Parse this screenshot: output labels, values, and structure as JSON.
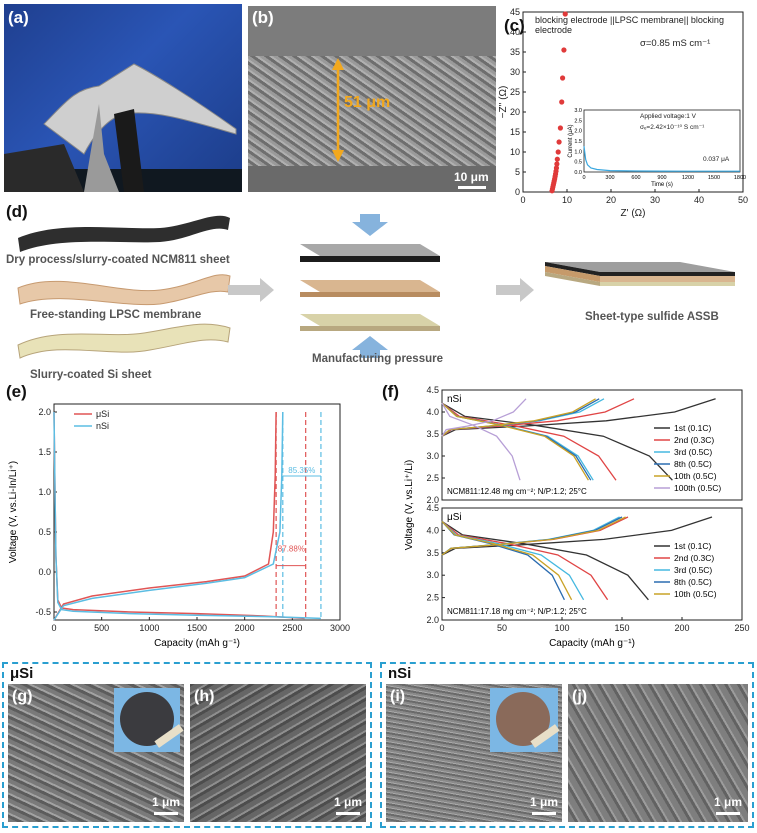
{
  "panels": {
    "a": "(a)",
    "b": "(b)",
    "c": "(c)",
    "d": "(d)",
    "e": "(e)",
    "f": "(f)",
    "g": "(g)",
    "h": "(h)",
    "i": "(i)",
    "j": "(j)"
  },
  "panel_b": {
    "thickness_label": "51 μm",
    "scale_label": "10 μm"
  },
  "panel_c": {
    "header": "blocking electrode ||LPSC membrane|| blocking electrode",
    "sigma": "σ=0.85 mS cm⁻¹",
    "xlabel": "Z' (Ω)",
    "ylabel": "−Z'' (Ω)",
    "inset": {
      "applied": "Applied voltage:1 V",
      "sigma_e": "σₑ=2.42×10⁻¹⁰ S cm⁻¹",
      "ylabel": "Current (μA)",
      "xlabel": "Time (s)",
      "end_label": "0.037 μA"
    }
  },
  "panel_d": {
    "sheet1": "Dry process/slurry-coated NCM811 sheet",
    "sheet2": "Free-standing LPSC membrane",
    "sheet3": "Slurry-coated Si sheet",
    "pressure": "Manufacturing pressure",
    "result": "Sheet-type sulfide ASSB"
  },
  "panel_g_title": "μSi",
  "panel_i_title": "nSi",
  "micro_scale": "1 μm",
  "chart_data": [
    {
      "id": "c",
      "type": "scatter",
      "xlabel": "Z' (Ω)",
      "ylabel": "−Z'' (Ω)",
      "xlim": [
        0,
        50
      ],
      "ylim": [
        0,
        45
      ],
      "xticks": [
        0,
        10,
        20,
        30,
        40,
        50
      ],
      "yticks": [
        0,
        5,
        10,
        15,
        20,
        25,
        30,
        35,
        40,
        45
      ],
      "points": [
        [
          6.6,
          0.3
        ],
        [
          6.7,
          0.8
        ],
        [
          6.8,
          1.3
        ],
        [
          6.9,
          1.8
        ],
        [
          7.0,
          2.3
        ],
        [
          7.1,
          2.8
        ],
        [
          7.2,
          3.3
        ],
        [
          7.3,
          3.9
        ],
        [
          7.4,
          4.5
        ],
        [
          7.5,
          5.2
        ],
        [
          7.6,
          6.0
        ],
        [
          7.7,
          7.0
        ],
        [
          7.8,
          8.2
        ],
        [
          8.0,
          10.0
        ],
        [
          8.2,
          12.5
        ],
        [
          8.5,
          16.0
        ],
        [
          8.8,
          22.5
        ],
        [
          9.0,
          28.5
        ],
        [
          9.3,
          35.5
        ],
        [
          9.6,
          44.5
        ]
      ],
      "color": "#e03a3a",
      "inset": {
        "type": "line",
        "xlim": [
          0,
          1800
        ],
        "ylim": [
          0,
          3.0
        ],
        "xticks": [
          0,
          300,
          600,
          900,
          1200,
          1500,
          1800
        ],
        "yticks": [
          0.0,
          0.5,
          1.0,
          1.5,
          2.0,
          2.5,
          3.0
        ],
        "x": [
          0,
          10,
          20,
          40,
          80,
          150,
          300,
          600,
          900,
          1200,
          1500,
          1800
        ],
        "y": [
          1.25,
          0.9,
          0.6,
          0.35,
          0.2,
          0.12,
          0.07,
          0.05,
          0.045,
          0.04,
          0.038,
          0.037
        ],
        "color": "#3aa8e0"
      }
    },
    {
      "id": "e",
      "type": "line",
      "xlabel": "Capacity (mAh g⁻¹)",
      "ylabel": "Voltage (V, vs.Li-In/Li⁺)",
      "xlim": [
        0,
        3000
      ],
      "ylim": [
        -0.6,
        2.1
      ],
      "xticks": [
        0,
        500,
        1000,
        1500,
        2000,
        2500,
        3000
      ],
      "yticks": [
        -0.5,
        0.0,
        0.5,
        1.0,
        1.5,
        2.0
      ],
      "series": [
        {
          "name": "μSi",
          "color": "#e05555",
          "discharge": [
            [
              0,
              2.0
            ],
            [
              10,
              1.0
            ],
            [
              20,
              0.2
            ],
            [
              40,
              -0.35
            ],
            [
              80,
              -0.45
            ],
            [
              200,
              -0.47
            ],
            [
              800,
              -0.5
            ],
            [
              1500,
              -0.52
            ],
            [
              2200,
              -0.55
            ],
            [
              2630,
              -0.58
            ]
          ],
          "charge": [
            [
              0,
              -0.6
            ],
            [
              100,
              -0.4
            ],
            [
              400,
              -0.3
            ],
            [
              1000,
              -0.2
            ],
            [
              1600,
              -0.12
            ],
            [
              2000,
              -0.05
            ],
            [
              2250,
              0.1
            ],
            [
              2300,
              0.5
            ],
            [
              2320,
              1.2
            ],
            [
              2330,
              2.0
            ]
          ]
        },
        {
          "name": "nSi",
          "color": "#5bbde3",
          "discharge": [
            [
              0,
              2.0
            ],
            [
              10,
              1.0
            ],
            [
              20,
              0.2
            ],
            [
              40,
              -0.38
            ],
            [
              80,
              -0.47
            ],
            [
              200,
              -0.49
            ],
            [
              800,
              -0.52
            ],
            [
              1500,
              -0.54
            ],
            [
              2300,
              -0.56
            ],
            [
              2800,
              -0.58
            ]
          ],
          "charge": [
            [
              0,
              -0.6
            ],
            [
              100,
              -0.42
            ],
            [
              400,
              -0.33
            ],
            [
              1000,
              -0.23
            ],
            [
              1600,
              -0.14
            ],
            [
              2000,
              -0.07
            ],
            [
              2300,
              0.1
            ],
            [
              2370,
              0.5
            ],
            [
              2390,
              1.2
            ],
            [
              2400,
              2.0
            ]
          ]
        }
      ],
      "annotations": {
        "n_eff": "85.35%",
        "u_eff": "87.88%"
      },
      "guides": {
        "u_charge": 2330,
        "u_discharge": 2640,
        "n_charge": 2400,
        "n_discharge": 2800
      }
    },
    {
      "id": "f_top",
      "type": "line",
      "title": "nSi",
      "note": "NCM811:12.48 mg cm⁻²; N/P:1.2; 25°C",
      "xlabel": "Capacity (mAh g⁻¹)",
      "ylabel": "Voltage (V, vs.Li⁺/Li)",
      "xlim": [
        0,
        250
      ],
      "ylim": [
        2.0,
        4.5
      ],
      "yticks": [
        2.0,
        2.5,
        3.0,
        3.5,
        4.0,
        4.5
      ],
      "series": [
        {
          "name": "1st (0.1C)",
          "color": "#333333",
          "charge_end": 228,
          "discharge_end": 192
        },
        {
          "name": "2nd (0.3C)",
          "color": "#e04545",
          "charge_end": 160,
          "discharge_end": 145
        },
        {
          "name": "3rd (0.5C)",
          "color": "#45b8e0",
          "charge_end": 135,
          "discharge_end": 126
        },
        {
          "name": "8th (0.5C)",
          "color": "#2b6cb0",
          "charge_end": 131,
          "discharge_end": 124
        },
        {
          "name": "10th (0.5C)",
          "color": "#c9a227",
          "charge_end": 128,
          "discharge_end": 122
        },
        {
          "name": "100th (0.5C)",
          "color": "#b79fd6",
          "charge_end": 70,
          "discharge_end": 65
        }
      ],
      "legend": [
        "1st (0.1C)",
        "2nd (0.3C)",
        "3rd (0.5C)",
        "8th (0.5C)",
        "10th (0.5C)",
        "100th (0.5C)"
      ]
    },
    {
      "id": "f_bottom",
      "type": "line",
      "title": "μSi",
      "note": "NCM811:17.18 mg cm⁻²; N/P:1.2; 25°C",
      "xlabel": "Capacity (mAh g⁻¹)",
      "ylabel": "Voltage (V, vs.Li⁺/Li)",
      "xlim": [
        0,
        250
      ],
      "ylim": [
        2.0,
        4.5
      ],
      "xticks": [
        0,
        50,
        100,
        150,
        200,
        250
      ],
      "yticks": [
        2.0,
        2.5,
        3.0,
        3.5,
        4.0,
        4.5
      ],
      "series": [
        {
          "name": "1st (0.1C)",
          "color": "#333333",
          "charge_end": 225,
          "discharge_end": 172
        },
        {
          "name": "2nd (0.3C)",
          "color": "#e04545",
          "charge_end": 155,
          "discharge_end": 138
        },
        {
          "name": "3rd (0.5C)",
          "color": "#45b8e0",
          "charge_end": 148,
          "discharge_end": 118
        },
        {
          "name": "8th (0.5C)",
          "color": "#2b6cb0",
          "charge_end": 150,
          "discharge_end": 102
        },
        {
          "name": "10th (0.5C)",
          "color": "#c9a227",
          "charge_end": 153,
          "discharge_end": 108
        }
      ],
      "legend": [
        "1st (0.1C)",
        "2nd (0.3C)",
        "3rd (0.5C)",
        "8th (0.5C)",
        "10th (0.5C)"
      ]
    }
  ]
}
